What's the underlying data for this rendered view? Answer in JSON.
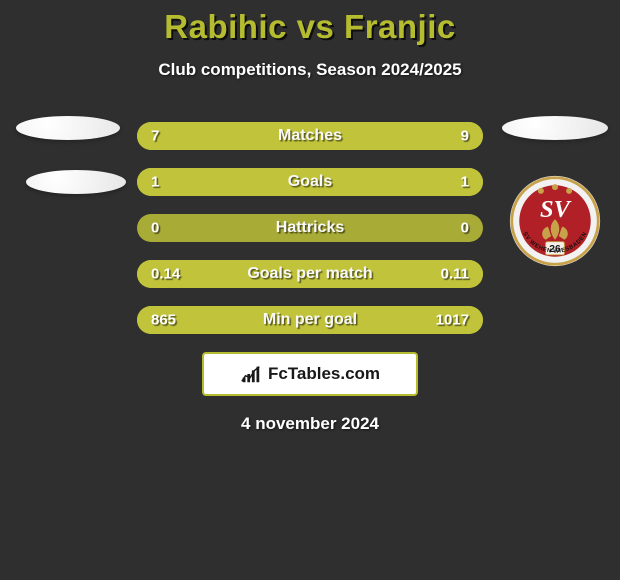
{
  "background_color": "#2f2f2f",
  "title": {
    "player_a": "Rabihic",
    "vs": "vs",
    "player_b": "Franjic",
    "color": "#b5bc2f",
    "shadow_color": "#0e0e0e"
  },
  "subtitle": {
    "text": "Club competitions, Season 2024/2025",
    "color": "#ffffff"
  },
  "left_badges": {
    "ellipse_color": "#f3f3f3"
  },
  "right_ellipse_color": "#f3f3f3",
  "club_logo": {
    "outer_ring": "#c7a24a",
    "inner_bg": "#b02026",
    "sv_text": "SV",
    "sv_color": "#ffffff",
    "lily_color": "#c7a24a",
    "number": "26",
    "number_color": "#1a1a1a",
    "ribbon_text": "SV WEHEN WIESBADEN",
    "ribbon_color": "#111111"
  },
  "stats": {
    "row_bg_color": "#a8ab36",
    "fill_color": "#c1c43a",
    "value_color": "#ffffff",
    "label_color": "#f8f8f8",
    "rows": [
      {
        "label": "Matches",
        "left_val": "7",
        "right_val": "9",
        "left_pct": 41,
        "right_pct": 59
      },
      {
        "label": "Goals",
        "left_val": "1",
        "right_val": "1",
        "left_pct": 50,
        "right_pct": 50
      },
      {
        "label": "Hattricks",
        "left_val": "0",
        "right_val": "0",
        "left_pct": 0,
        "right_pct": 0
      },
      {
        "label": "Goals per match",
        "left_val": "0.14",
        "right_val": "0.11",
        "left_pct": 56,
        "right_pct": 44
      },
      {
        "label": "Min per goal",
        "left_val": "865",
        "right_val": "1017",
        "left_pct": 46,
        "right_pct": 54
      }
    ]
  },
  "footer_card": {
    "bg_color": "#ffffff",
    "border_color": "#b5bc2f",
    "text": "FcTables.com",
    "text_color": "#181818",
    "icon_color": "#181818"
  },
  "date": {
    "text": "4 november 2024",
    "color": "#ffffff"
  }
}
